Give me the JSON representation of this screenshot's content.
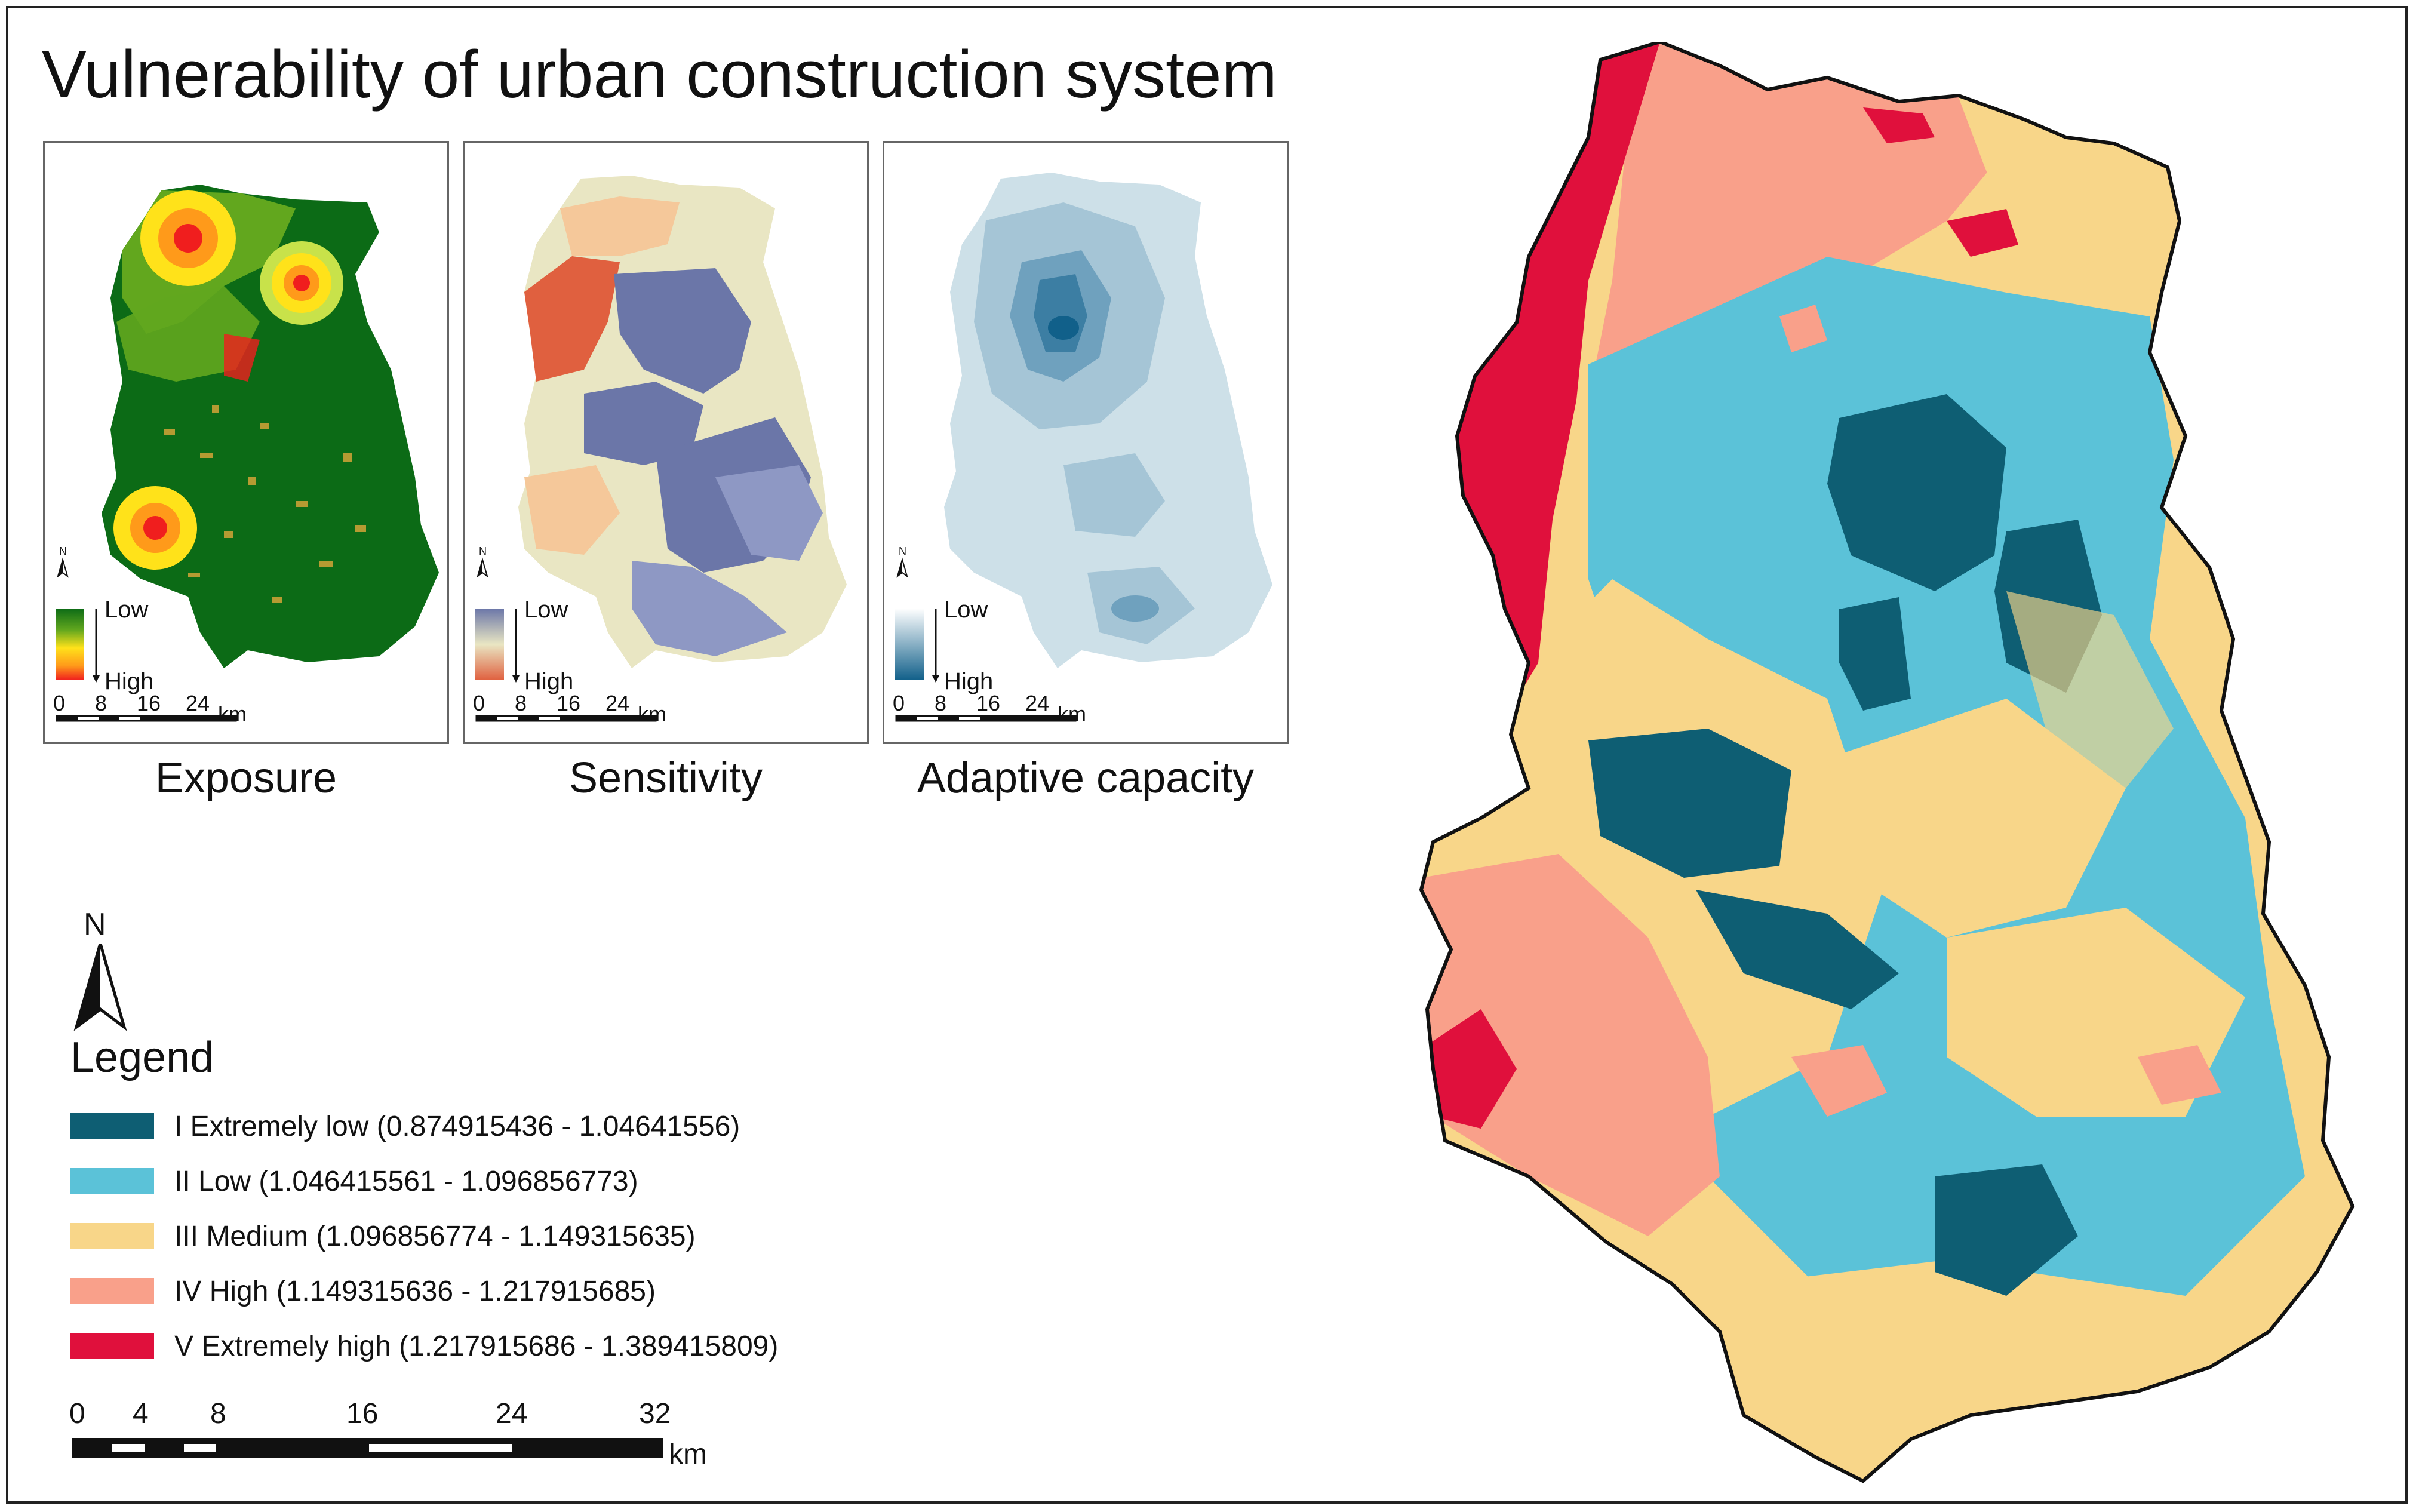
{
  "title": "Vulnerability of urban construction system",
  "panels": [
    {
      "caption": "Exposure",
      "legend_low": "Low",
      "legend_high": "High",
      "colors": [
        "#0c6b16",
        "#62a71e",
        "#c8e24a",
        "#ffe21a",
        "#ff9a1a",
        "#f01e1e"
      ]
    },
    {
      "caption": "Sensitivity",
      "legend_low": "Low",
      "legend_high": "High",
      "colors": [
        "#6b76a8",
        "#8e98c4",
        "#e9e6c3",
        "#f5c89a",
        "#e98a65",
        "#e0603f"
      ]
    },
    {
      "caption": "Adaptive capacity",
      "legend_low": "Low",
      "legend_high": "High",
      "colors": [
        "#ffffff",
        "#cde0e8",
        "#a5c5d6",
        "#6fa1be",
        "#3c7ea3",
        "#11608a"
      ]
    }
  ],
  "mini_scale": {
    "ticks": [
      "0",
      "8",
      "16",
      "24"
    ],
    "unit": "km"
  },
  "mini_north": "N",
  "north_label": "N",
  "legend": {
    "title": "Legend",
    "items": [
      {
        "label": "I Extremely low (0.874915436 - 1.04641556)",
        "color": "#0e5e73"
      },
      {
        "label": "II Low (1.046415561 - 1.096856773)",
        "color": "#5bc2d8"
      },
      {
        "label": "III Medium (1.096856774 - 1.149315635)",
        "color": "#f8d689"
      },
      {
        "label": "IV High (1.149315636 - 1.217915685)",
        "color": "#f9a08a"
      },
      {
        "label": "V Extremely high (1.217915686 - 1.389415809)",
        "color": "#e0103c"
      }
    ]
  },
  "scale_bar": {
    "ticks": [
      "0",
      "4",
      "8",
      "16",
      "24",
      "32"
    ],
    "unit": "km"
  }
}
